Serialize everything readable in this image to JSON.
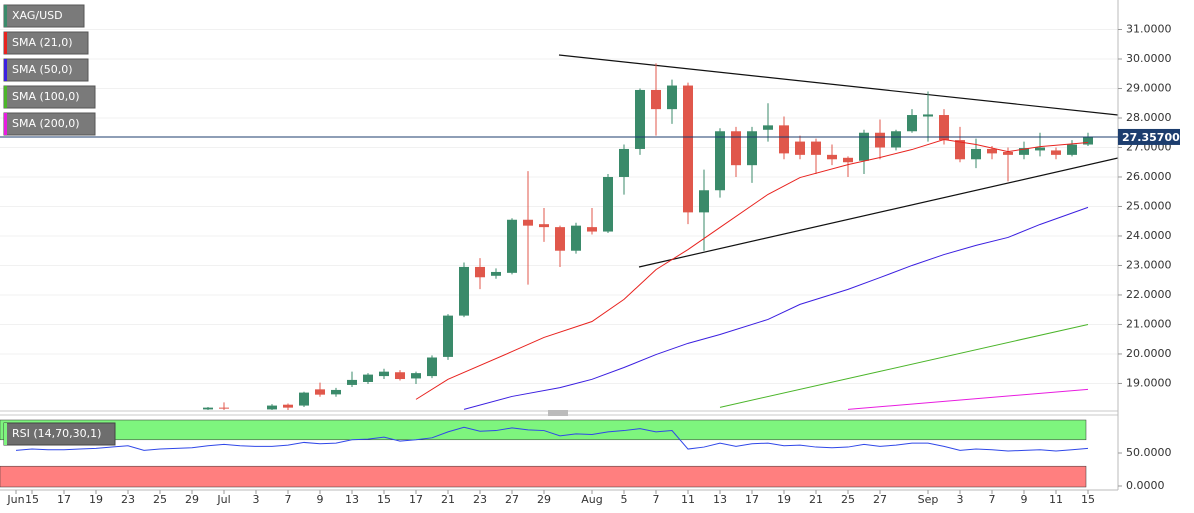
{
  "chart_data": {
    "type": "candlestick",
    "title": "XAG/USD",
    "categories": [
      "Jun 12",
      "Jun 15",
      "Jun 16",
      "Jun 17",
      "Jun 18",
      "Jun 19",
      "Jun 22",
      "Jun 23",
      "Jun 24",
      "Jun 25",
      "Jun 26",
      "Jun 29",
      "Jun 30",
      "Jul 1",
      "Jul 2",
      "Jul 3",
      "Jul 6",
      "Jul 7",
      "Jul 8",
      "Jul 9",
      "Jul 10",
      "Jul 13",
      "Jul 14",
      "Jul 15",
      "Jul 16",
      "Jul 17",
      "Jul 20",
      "Jul 21",
      "Jul 22",
      "Jul 23",
      "Jul 24",
      "Jul 27",
      "Jul 28",
      "Jul 29",
      "Jul 30",
      "Jul 31",
      "Aug 3",
      "Aug 4",
      "Aug 5",
      "Aug 6",
      "Aug 7",
      "Aug 10",
      "Aug 11",
      "Aug 12",
      "Aug 13",
      "Aug 14",
      "Aug 17",
      "Aug 18",
      "Aug 19",
      "Aug 20",
      "Aug 21",
      "Aug 24",
      "Aug 25",
      "Aug 26",
      "Aug 27",
      "Aug 28",
      "Aug 31",
      "Sep 1",
      "Sep 2",
      "Sep 3",
      "Sep 4",
      "Sep 7",
      "Sep 8",
      "Sep 9",
      "Sep 10",
      "Sep 11",
      "Sep 14",
      "Sep 15"
    ],
    "open": [
      null,
      null,
      null,
      null,
      null,
      null,
      null,
      null,
      null,
      null,
      null,
      null,
      18.12,
      18.18,
      null,
      null,
      18.12,
      18.28,
      18.25,
      18.8,
      18.63,
      18.95,
      19.05,
      19.25,
      19.38,
      19.17,
      19.25,
      19.9,
      21.3,
      22.95,
      22.65,
      22.75,
      24.55,
      24.4,
      24.3,
      23.5,
      24.3,
      24.15,
      26.0,
      26.95,
      28.95,
      28.3,
      29.1,
      24.8,
      25.55,
      27.55,
      26.4,
      27.6,
      27.75,
      27.2,
      27.2,
      26.75,
      26.65,
      26.55,
      27.5,
      27.0,
      27.55,
      28.05,
      28.1,
      27.25,
      26.6,
      26.95,
      26.85,
      26.75,
      26.9,
      26.9,
      26.75,
      27.1
    ],
    "high": [
      null,
      null,
      null,
      null,
      null,
      null,
      null,
      null,
      null,
      null,
      null,
      null,
      18.2,
      18.36,
      null,
      null,
      18.3,
      18.32,
      18.72,
      19.03,
      18.85,
      19.4,
      19.35,
      19.5,
      19.45,
      19.4,
      19.95,
      21.35,
      23.1,
      23.25,
      22.9,
      24.6,
      26.2,
      24.95,
      24.35,
      24.45,
      24.95,
      26.1,
      27.1,
      29.0,
      29.85,
      29.3,
      29.2,
      26.25,
      27.65,
      27.7,
      27.7,
      28.5,
      28.05,
      27.4,
      27.3,
      27.1,
      26.7,
      27.6,
      27.95,
      27.6,
      28.3,
      28.9,
      28.3,
      27.7,
      27.3,
      27.05,
      27.0,
      27.2,
      27.5,
      27.0,
      27.25,
      27.5
    ],
    "low": [
      null,
      null,
      null,
      null,
      null,
      null,
      null,
      null,
      null,
      null,
      null,
      null,
      18.1,
      18.1,
      null,
      null,
      18.05,
      18.1,
      18.2,
      18.55,
      18.55,
      18.88,
      18.98,
      19.15,
      19.1,
      18.98,
      19.18,
      19.8,
      21.25,
      22.2,
      22.55,
      22.7,
      22.35,
      23.8,
      22.95,
      23.4,
      24.05,
      24.1,
      25.4,
      26.75,
      27.4,
      27.8,
      24.4,
      23.5,
      25.3,
      26.0,
      25.8,
      27.2,
      26.6,
      26.6,
      26.1,
      26.4,
      26.0,
      26.1,
      26.6,
      26.9,
      27.5,
      27.2,
      27.1,
      26.5,
      26.3,
      26.6,
      25.85,
      26.6,
      26.7,
      26.6,
      26.7,
      27.05
    ],
    "close": [
      null,
      null,
      null,
      null,
      null,
      null,
      null,
      null,
      null,
      null,
      null,
      null,
      18.18,
      18.15,
      null,
      null,
      18.25,
      18.18,
      18.69,
      18.62,
      18.78,
      19.12,
      19.3,
      19.4,
      19.15,
      19.35,
      19.88,
      21.3,
      22.95,
      22.6,
      22.78,
      24.55,
      24.35,
      24.3,
      23.5,
      24.35,
      24.15,
      26.0,
      26.95,
      28.95,
      28.3,
      29.1,
      24.8,
      25.55,
      27.55,
      26.4,
      27.55,
      27.75,
      26.8,
      26.75,
      26.75,
      26.6,
      26.5,
      27.5,
      27.0,
      27.55,
      28.1,
      28.12,
      27.25,
      26.6,
      26.95,
      26.8,
      26.75,
      26.98,
      27.0,
      26.75,
      27.1,
      27.357
    ],
    "up_color": "#3a8a6a",
    "down_color": "#e0574b",
    "ylim": [
      18.1,
      32.0
    ],
    "yticks": [
      {
        "value": 19,
        "label": "19.0000"
      },
      {
        "value": 20,
        "label": "20.0000"
      },
      {
        "value": 21,
        "label": "21.0000"
      },
      {
        "value": 22,
        "label": "22.0000"
      },
      {
        "value": 23,
        "label": "23.0000"
      },
      {
        "value": 24,
        "label": "24.0000"
      },
      {
        "value": 25,
        "label": "25.0000"
      },
      {
        "value": 26,
        "label": "26.0000"
      },
      {
        "value": 27,
        "label": "27.0000"
      },
      {
        "value": 28,
        "label": "28.0000"
      },
      {
        "value": 29,
        "label": "29.0000"
      },
      {
        "value": 30,
        "label": "30.0000"
      },
      {
        "value": 31,
        "label": "31.0000"
      }
    ],
    "grid": true,
    "last_price": {
      "value": 27.357,
      "label": "27.35700",
      "color": "#1c3d6e"
    },
    "sma": [
      {
        "name": "SMA (21,0)",
        "color": "#e8231f",
        "x": [
          "Jul 17",
          "Jul 21",
          "Jul 27",
          "Jul 29",
          "Aug 3",
          "Aug 5",
          "Aug 7",
          "Aug 11",
          "Aug 13",
          "Aug 18",
          "Aug 20",
          "Aug 25",
          "Aug 27",
          "Aug 31",
          "Sep 2",
          "Sep 4",
          "Sep 8",
          "Sep 10",
          "Sep 15"
        ],
        "values": [
          18.46,
          19.14,
          20.08,
          20.56,
          21.1,
          21.85,
          22.86,
          23.54,
          24.29,
          25.41,
          25.98,
          26.42,
          26.66,
          26.93,
          27.27,
          27.1,
          26.86,
          27.03,
          27.17
        ]
      },
      {
        "name": "SMA (50,0)",
        "color": "#3b1fe0",
        "x": [
          "Jul 22",
          "Jul 27",
          "Jul 30",
          "Aug 3",
          "Aug 5",
          "Aug 7",
          "Aug 11",
          "Aug 13",
          "Aug 18",
          "Aug 20",
          "Aug 25",
          "Aug 27",
          "Aug 31",
          "Sep 2",
          "Sep 4",
          "Sep 8",
          "Sep 10",
          "Sep 15"
        ],
        "values": [
          18.12,
          18.56,
          18.86,
          19.14,
          19.54,
          19.98,
          20.36,
          20.66,
          21.17,
          21.68,
          22.19,
          22.59,
          23.0,
          23.37,
          23.68,
          23.95,
          24.39,
          24.97
        ]
      },
      {
        "name": "SMA (100,0)",
        "color": "#4bb52a",
        "x": [
          "Aug 13",
          "Aug 27",
          "Sep 15"
        ],
        "values": [
          18.19,
          19.41,
          21.0
        ]
      },
      {
        "name": "SMA (200,0)",
        "color": "#e81ce0",
        "x": [
          "Aug 25",
          "Sep 15"
        ],
        "values": [
          18.12,
          18.8
        ]
      }
    ],
    "rsi": {
      "type": "line",
      "name": "RSI (14,70,30,1)",
      "color": "#2f47e8",
      "values": [
        54,
        56,
        55,
        55,
        56,
        57,
        59,
        61,
        54,
        56,
        57,
        58,
        61,
        63,
        61,
        60,
        60,
        62,
        66,
        64,
        65,
        70,
        71,
        74,
        68,
        70,
        73,
        82,
        89,
        83,
        84,
        88,
        85,
        84,
        76,
        79,
        78,
        82,
        84,
        87,
        82,
        84,
        56,
        59,
        65,
        60,
        64,
        65,
        61,
        62,
        59,
        58,
        59,
        63,
        60,
        62,
        65,
        65,
        60,
        54,
        56,
        55,
        53,
        54,
        55,
        53,
        55,
        57
      ],
      "ylim": [
        0,
        100
      ],
      "yticks": [
        {
          "value": 0,
          "label": "0.0000"
        },
        {
          "value": 50,
          "label": "50.0000"
        }
      ],
      "upper_band": 70,
      "lower_band": 30,
      "upper_color": "#7ef57e",
      "lower_color": "#ff7f7f"
    },
    "xticks": [
      {
        "value": "Jun 12",
        "label": "Jun"
      },
      {
        "value": "Jun 15",
        "label": "15"
      },
      {
        "value": "Jun 17",
        "label": "17"
      },
      {
        "value": "Jun 19",
        "label": "19"
      },
      {
        "value": "Jun 23",
        "label": "23"
      },
      {
        "value": "Jun 25",
        "label": "25"
      },
      {
        "value": "Jun 29",
        "label": "29"
      },
      {
        "value": "Jul 1",
        "label": "Jul"
      },
      {
        "value": "Jul 3",
        "label": "3"
      },
      {
        "value": "Jul 7",
        "label": "7"
      },
      {
        "value": "Jul 9",
        "label": "9"
      },
      {
        "value": "Jul 13",
        "label": "13"
      },
      {
        "value": "Jul 15",
        "label": "15"
      },
      {
        "value": "Jul 17",
        "label": "17"
      },
      {
        "value": "Jul 21",
        "label": "21"
      },
      {
        "value": "Jul 23",
        "label": "23"
      },
      {
        "value": "Jul 27",
        "label": "27"
      },
      {
        "value": "Jul 29",
        "label": "29"
      },
      {
        "value": "Aug 3",
        "label": "Aug"
      },
      {
        "value": "Aug 5",
        "label": "5"
      },
      {
        "value": "Aug 7",
        "label": "7"
      },
      {
        "value": "Aug 11",
        "label": "11"
      },
      {
        "value": "Aug 13",
        "label": "13"
      },
      {
        "value": "Aug 17",
        "label": "17"
      },
      {
        "value": "Aug 19",
        "label": "19"
      },
      {
        "value": "Aug 21",
        "label": "21"
      },
      {
        "value": "Aug 25",
        "label": "25"
      },
      {
        "value": "Aug 27",
        "label": "27"
      },
      {
        "value": "Sep 1",
        "label": "Sep"
      },
      {
        "value": "Sep 3",
        "label": "3"
      },
      {
        "value": "Sep 7",
        "label": "7"
      },
      {
        "value": "Sep 9",
        "label": "9"
      },
      {
        "value": "Sep 11",
        "label": "11"
      },
      {
        "value": "Sep 15",
        "label": "15"
      }
    ]
  }
}
